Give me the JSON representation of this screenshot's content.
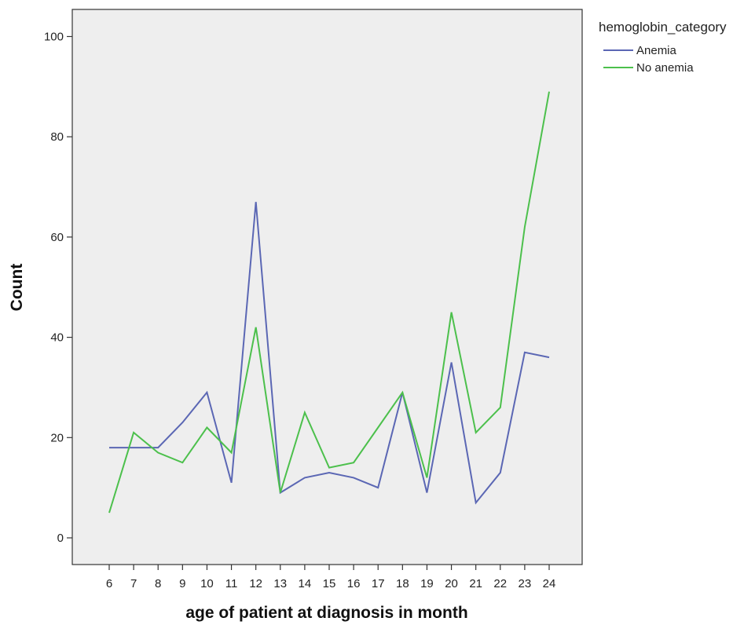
{
  "chart_data": {
    "type": "line",
    "xlabel": "age of patient at diagnosis in month",
    "ylabel": "Count",
    "x": [
      6,
      7,
      8,
      9,
      10,
      11,
      12,
      13,
      14,
      15,
      16,
      17,
      18,
      19,
      20,
      21,
      22,
      23,
      24
    ],
    "ylim": [
      -5,
      105
    ],
    "yticks": [
      0,
      20,
      40,
      60,
      80,
      100
    ],
    "grid": false,
    "legend": {
      "title": "hemoglobin_category",
      "placement": "outside-top-right"
    },
    "series": [
      {
        "name": "Anemia",
        "color": "#5b67b4",
        "values": [
          18,
          18,
          18,
          23,
          29,
          11,
          67,
          9,
          12,
          13,
          12,
          10,
          29,
          9,
          35,
          7,
          13,
          37,
          36
        ]
      },
      {
        "name": "No anemia",
        "color": "#4cc04c",
        "x": [
          6,
          7,
          8,
          9,
          10,
          11,
          12,
          13,
          14,
          15,
          16,
          17,
          18,
          19,
          20,
          21,
          22,
          23,
          24
        ],
        "values": [
          5,
          21,
          17,
          15,
          22,
          17,
          42,
          9,
          25,
          14,
          15,
          22,
          29,
          12,
          45,
          21,
          26,
          62,
          89
        ]
      }
    ],
    "colors": {
      "plot_background": "#eeeeee",
      "frame": "#333333"
    }
  }
}
